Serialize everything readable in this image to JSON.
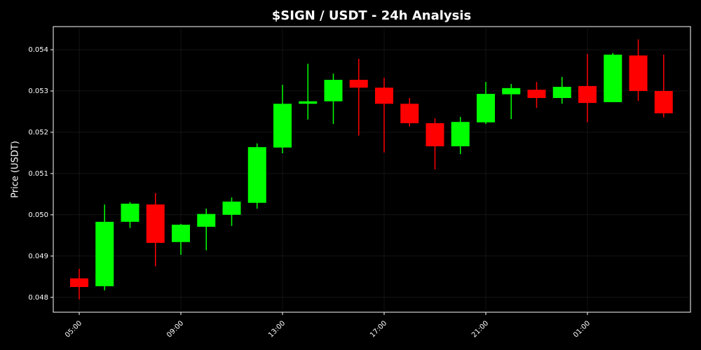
{
  "chart_data": {
    "type": "candlestick",
    "title": "$SIGN / USDT - 24h Analysis",
    "y_label": "Price (USDT)",
    "categories": [
      "05:00",
      null,
      null,
      null,
      "09:00",
      null,
      null,
      null,
      "13:00",
      null,
      null,
      null,
      "17:00",
      null,
      null,
      null,
      "21:00",
      null,
      null,
      null,
      "01:00",
      null,
      null,
      null
    ],
    "open": [
      0.04846,
      0.04827,
      0.04983,
      0.05025,
      0.04934,
      0.04971,
      0.05,
      0.05029,
      0.05163,
      0.05269,
      0.05275,
      0.05327,
      0.05308,
      0.05269,
      0.05222,
      0.05166,
      0.05224,
      0.05292,
      0.05303,
      0.05283,
      0.05312,
      0.05273,
      0.05386,
      0.053
    ],
    "high": [
      0.04869,
      0.05025,
      0.05031,
      0.05053,
      0.04978,
      0.05015,
      0.05042,
      0.05173,
      0.05315,
      0.05366,
      0.05342,
      0.05378,
      0.05332,
      0.05283,
      0.05234,
      0.05237,
      0.05322,
      0.05317,
      0.05322,
      0.05334,
      0.0539,
      0.05392,
      0.05425,
      0.05388
    ],
    "low": [
      0.04795,
      0.04817,
      0.04968,
      0.04875,
      0.04903,
      0.04914,
      0.04973,
      0.05015,
      0.05149,
      0.05231,
      0.0522,
      0.05192,
      0.05151,
      0.05214,
      0.0511,
      0.05147,
      0.0522,
      0.05232,
      0.05259,
      0.05269,
      0.05224,
      0.05273,
      0.05276,
      0.05236
    ],
    "close": [
      0.04825,
      0.04983,
      0.05027,
      0.04932,
      0.04976,
      0.05002,
      0.05032,
      0.05164,
      0.05269,
      0.05275,
      0.05327,
      0.05308,
      0.05269,
      0.05222,
      0.05166,
      0.05225,
      0.05293,
      0.05307,
      0.05283,
      0.0531,
      0.05271,
      0.05388,
      0.053,
      0.05246
    ],
    "up_color": "#00ff00",
    "down_color": "#ff0000",
    "ylim": [
      0.04764,
      0.05456
    ],
    "yticks": [
      0.048,
      0.049,
      {
        "value": 0.05,
        "label": "0.050"
      },
      0.051,
      0.052,
      0.053,
      0.054
    ],
    "grid": true
  }
}
